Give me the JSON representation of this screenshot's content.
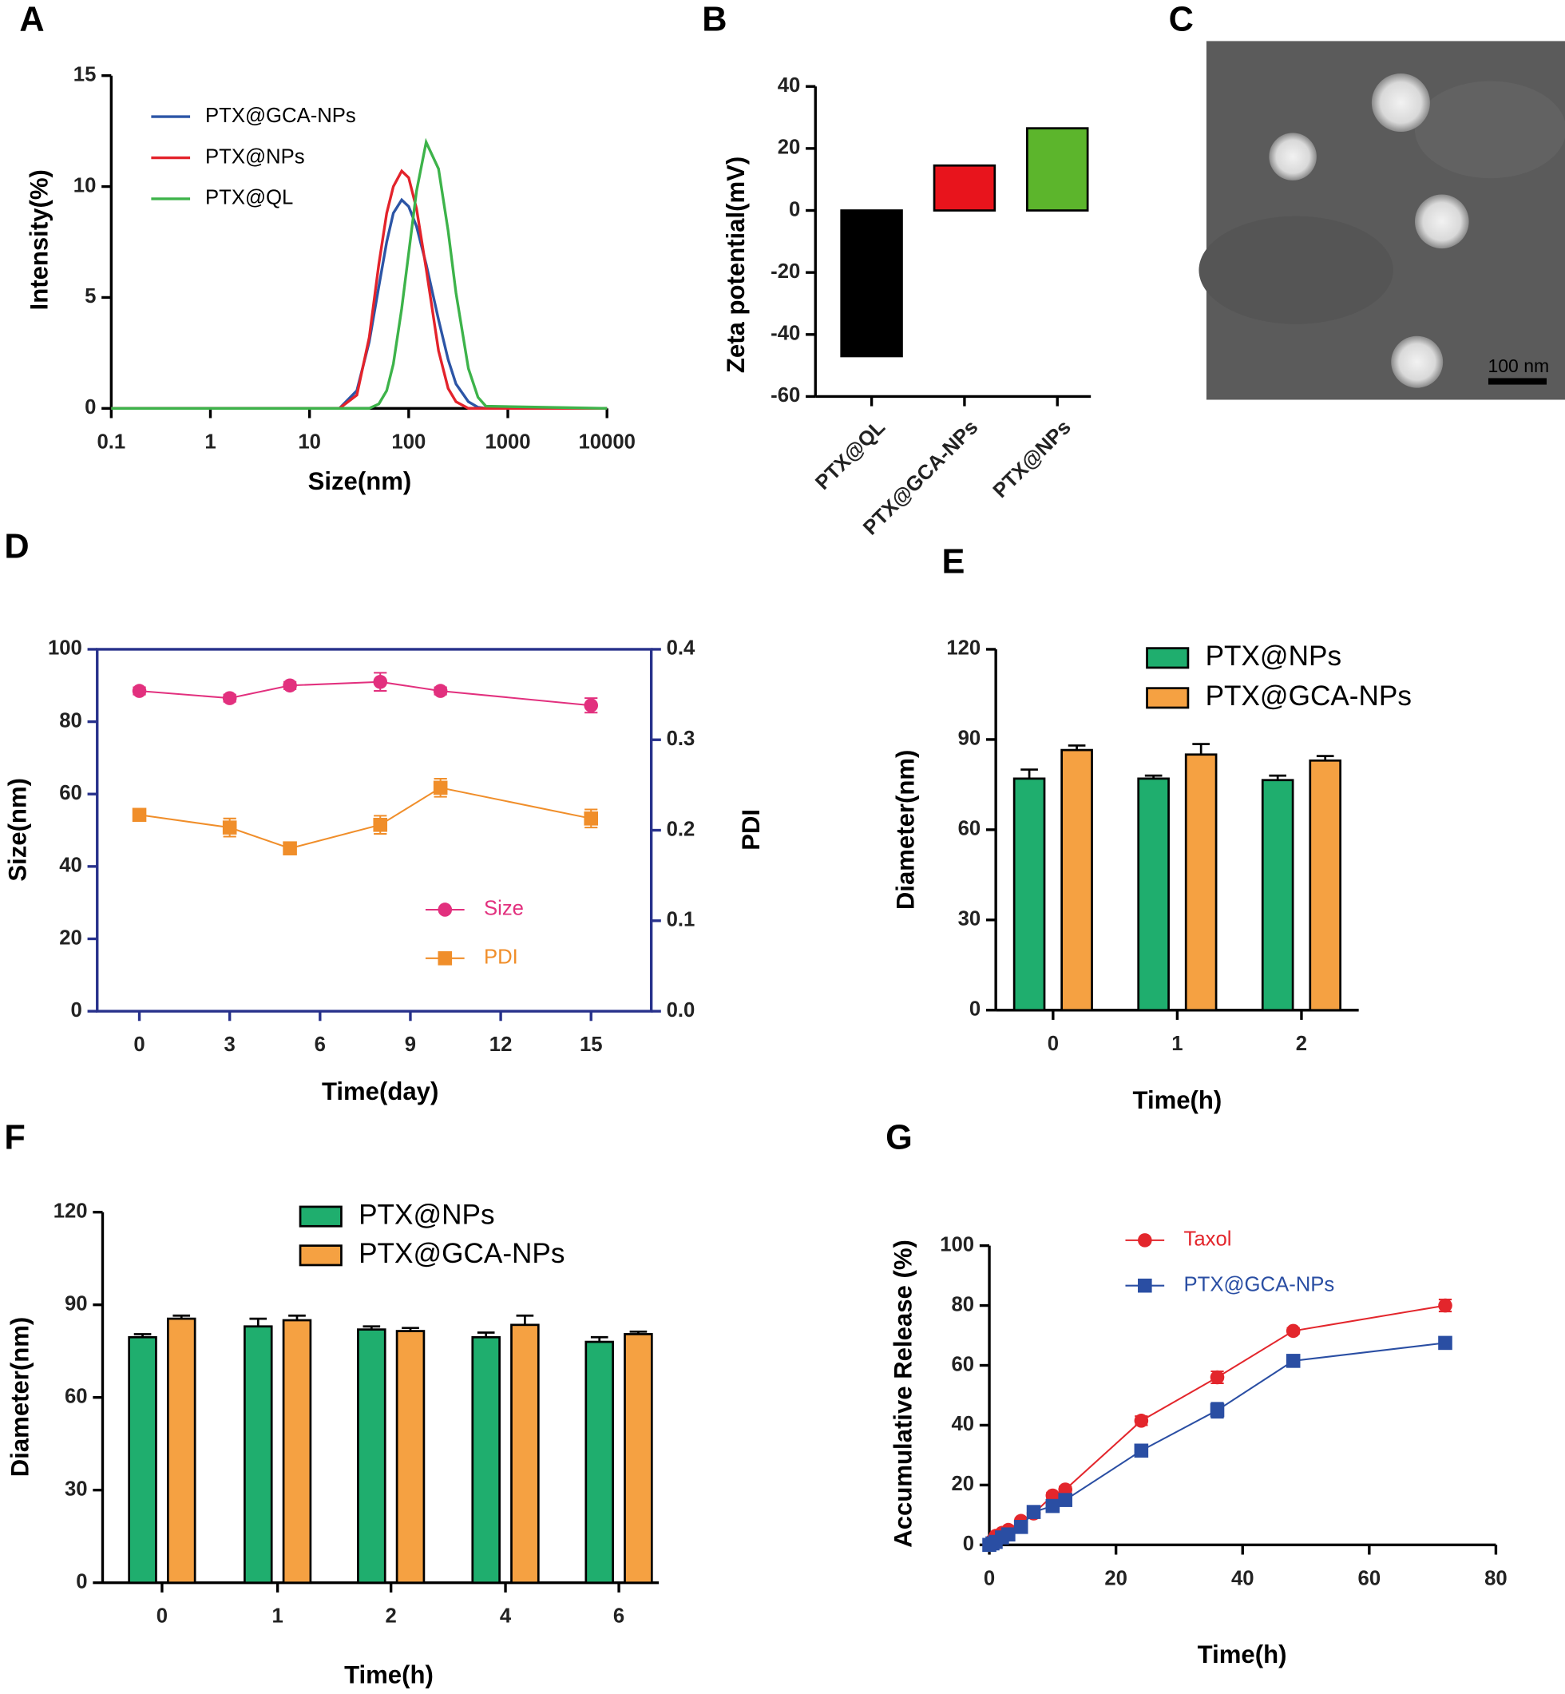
{
  "panel_labels": [
    "A",
    "B",
    "C",
    "D",
    "E",
    "F",
    "G"
  ],
  "sem_image": {
    "scale_bar": "100 nm"
  },
  "chart_data": [
    {
      "type": "line",
      "x_label": "Size(nm)",
      "y_label": "Intensity(%)",
      "x_scale": "log",
      "xlim": [
        0.1,
        10000
      ],
      "xticks": [
        0.1,
        1,
        10,
        100,
        1000,
        10000
      ],
      "ylim": [
        0,
        15
      ],
      "yticks": [
        0,
        5,
        10,
        15
      ],
      "legend": "upper left",
      "x": [
        0.1,
        20,
        30,
        40,
        50,
        60,
        70,
        85,
        100,
        120,
        150,
        200,
        250,
        300,
        400,
        500,
        600,
        10000
      ],
      "series": [
        {
          "name": "PTX@GCA-NPs",
          "color": "#2c55a6",
          "values": [
            0,
            0,
            0.8,
            3,
            5.5,
            7.5,
            8.8,
            9.4,
            9.1,
            8.2,
            6.5,
            4,
            2.2,
            1.1,
            0.3,
            0.05,
            0,
            0
          ]
        },
        {
          "name": "PTX@NPs",
          "color": "#e3232b",
          "values": [
            0,
            0,
            0.6,
            3.2,
            6.5,
            8.8,
            10,
            10.7,
            10.4,
            9,
            6.3,
            2.6,
            0.9,
            0.3,
            0,
            0,
            0,
            0
          ]
        },
        {
          "name": "PTX@QL",
          "color": "#3db34a",
          "values": [
            0,
            0,
            0,
            0,
            0.2,
            0.8,
            2,
            4.5,
            7,
            9.8,
            12,
            10.8,
            8,
            5.2,
            1.8,
            0.5,
            0.1,
            0
          ]
        }
      ]
    },
    {
      "type": "bar",
      "y_label": "Zeta potential(mV)",
      "categories": [
        "PTX@QL",
        "PTX@GCA-NPs",
        "PTX@NPs"
      ],
      "values": [
        -47,
        14.5,
        26.5
      ],
      "colors": [
        "#000000",
        "#e8141c",
        "#5cb52c"
      ],
      "ylim": [
        -60,
        40
      ],
      "yticks": [
        -60,
        -40,
        -20,
        0,
        20,
        40
      ]
    },
    {
      "type": "line",
      "x_label": "Time(day)",
      "y_label": "Size(nm)",
      "y2_label": "PDI",
      "xlim": [
        -1.4,
        17
      ],
      "xticks": [
        0,
        3,
        6,
        9,
        12,
        15
      ],
      "ylim": [
        0,
        100
      ],
      "yticks": [
        0,
        20,
        40,
        60,
        80,
        100
      ],
      "y2lim": [
        0,
        0.4
      ],
      "y2ticks": [
        {
          "value": 0,
          "label": "0.0"
        },
        0.1,
        0.2,
        0.3,
        0.4
      ],
      "legend": "lower center",
      "axis_color": "#27318b",
      "x": [
        0,
        3,
        5,
        8,
        10,
        15
      ],
      "series": [
        {
          "name": "Size",
          "color": "#e2307e",
          "marker": "circle",
          "values": [
            88.5,
            86.5,
            90,
            91,
            88.5,
            84.5
          ],
          "errors": [
            1,
            1,
            1,
            2.5,
            1,
            2
          ]
        },
        {
          "name": "PDI",
          "color": "#f08e2a",
          "marker": "square",
          "axis": "y2",
          "values": [
            0.217,
            0.203,
            0.18,
            0.206,
            0.247,
            0.213
          ],
          "errors": [
            0.005,
            0.01,
            0.004,
            0.01,
            0.01,
            0.01
          ]
        }
      ]
    },
    {
      "type": "bar",
      "x_label": "Time(h)",
      "y_label": "Diameter(nm)",
      "categories": [
        "0",
        "1",
        "2"
      ],
      "ylim": [
        0,
        120
      ],
      "yticks": [
        0,
        30,
        60,
        90,
        120
      ],
      "legend": "upper center",
      "series": [
        {
          "name": "PTX@NPs",
          "color": "#1fae6e",
          "values": [
            77,
            77,
            76.5
          ],
          "errors": [
            3,
            1,
            1.5
          ]
        },
        {
          "name": "PTX@GCA-NPs",
          "color": "#f5a142",
          "values": [
            86.5,
            85,
            83
          ],
          "errors": [
            1.5,
            3.5,
            1.5
          ]
        }
      ]
    },
    {
      "type": "bar",
      "x_label": "Time(h)",
      "y_label": "Diameter(nm)",
      "categories": [
        "0",
        "1",
        "2",
        "4",
        "6"
      ],
      "ylim": [
        0,
        120
      ],
      "yticks": [
        0,
        30,
        60,
        90,
        120
      ],
      "legend": "upper center",
      "series": [
        {
          "name": "PTX@NPs",
          "color": "#1fae6e",
          "values": [
            79.5,
            83,
            82,
            79.5,
            78
          ],
          "errors": [
            1,
            2.5,
            1,
            1.5,
            1.5
          ]
        },
        {
          "name": "PTX@GCA-NPs",
          "color": "#f5a142",
          "values": [
            85.5,
            85,
            81.5,
            83.5,
            80.5
          ],
          "errors": [
            1,
            1.5,
            1,
            3,
            0.8
          ]
        }
      ]
    },
    {
      "type": "line",
      "x_label": "Time(h)",
      "y_label": "Accumulative Release (%)",
      "xlim": [
        0,
        80
      ],
      "xticks": [
        0,
        20,
        40,
        60,
        80
      ],
      "ylim": [
        0,
        100
      ],
      "yticks": [
        0,
        20,
        40,
        60,
        80,
        100
      ],
      "legend": "upper center",
      "x": [
        0,
        0.5,
        1,
        2,
        3,
        5,
        7,
        10,
        12,
        24,
        36,
        48,
        72
      ],
      "series": [
        {
          "name": "Taxol",
          "color": "#e3262c",
          "marker": "circle",
          "values": [
            0,
            1.5,
            3,
            4,
            5,
            8,
            10.5,
            16.5,
            18.5,
            41.5,
            56,
            71.5,
            80
          ],
          "errors": [
            0.3,
            0.4,
            0.5,
            0.5,
            0.5,
            0.8,
            0.8,
            1,
            1,
            1.5,
            2,
            1,
            2
          ]
        },
        {
          "name": "PTX@GCA-NPs",
          "color": "#2a4ea3",
          "marker": "square",
          "values": [
            0,
            0.5,
            1,
            2.5,
            3.5,
            6,
            11,
            13,
            15,
            31.5,
            45,
            61.5,
            67.5
          ],
          "errors": [
            0.3,
            0.3,
            0.4,
            0.5,
            0.5,
            0.8,
            1,
            1,
            1,
            1.5,
            2.5,
            1,
            1
          ]
        }
      ]
    }
  ]
}
